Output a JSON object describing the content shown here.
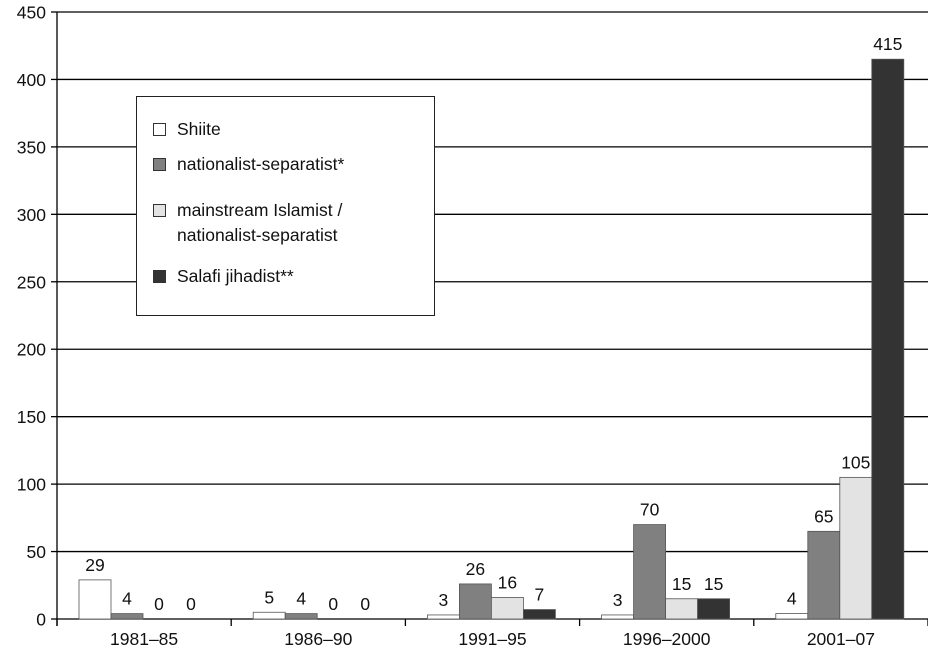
{
  "chart_data": {
    "type": "bar",
    "categories": [
      "1981–85",
      "1986–90",
      "1991–95",
      "1996–2000",
      "2001–07"
    ],
    "series": [
      {
        "name": "Shiite",
        "values": [
          29,
          5,
          3,
          3,
          4
        ],
        "color": "#ffffff",
        "labels": [
          "29",
          "5",
          "3",
          "3",
          "4"
        ]
      },
      {
        "name": "nationalist-separatist*",
        "values": [
          4,
          4,
          26,
          70,
          65
        ],
        "color": "#808080",
        "labels": [
          "4",
          "4",
          "26",
          "70",
          "65"
        ]
      },
      {
        "name": "mainstream Islamist /\nnationalist-separatist",
        "values": [
          0,
          0,
          16,
          15,
          105
        ],
        "color": "#e3e3e3",
        "labels": [
          "0",
          "0",
          "16",
          "15",
          "105"
        ]
      },
      {
        "name": "Salafi jihadist**",
        "values": [
          0,
          0,
          7,
          15,
          415
        ],
        "color": "#333333",
        "labels": [
          "0",
          "0",
          "7",
          "15",
          "415"
        ]
      }
    ],
    "yticks": [
      "0",
      "50",
      "100",
      "150",
      "200",
      "250",
      "300",
      "350",
      "400",
      "450"
    ],
    "ylim": [
      0,
      450
    ],
    "grid": true,
    "legend_position": "upper-left"
  }
}
